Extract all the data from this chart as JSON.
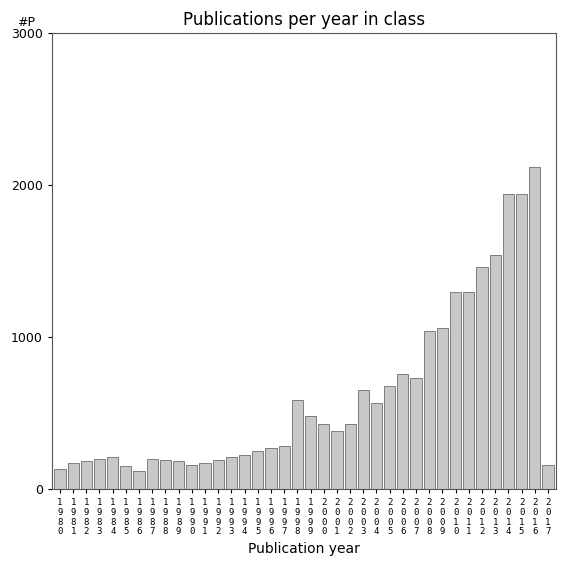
{
  "title": "Publications per year in class",
  "xlabel": "Publication year",
  "ylabel": "#P",
  "bar_years": [
    1980,
    1981,
    1982,
    1983,
    1984,
    1985,
    1986,
    1987,
    1988,
    1989,
    1990,
    1991,
    1992,
    1993,
    1994,
    1995,
    1996,
    1997,
    1998,
    1999,
    2000,
    2001,
    2002,
    2003,
    2004,
    2005,
    2006,
    2007,
    2008,
    2009,
    2010,
    2011,
    2012,
    2013,
    2014,
    2015,
    2016,
    2017
  ],
  "bar_heights": [
    130,
    175,
    185,
    200,
    210,
    155,
    120,
    200,
    195,
    185,
    160,
    175,
    195,
    210,
    225,
    250,
    270,
    285,
    590,
    480,
    430,
    380,
    430,
    650,
    570,
    680,
    760,
    730,
    1040,
    1060,
    1300,
    1300,
    1460,
    1540,
    1940,
    1945,
    2120,
    160
  ],
  "bar_color": "#c8c8c8",
  "bar_edgecolor": "#555555",
  "ylim": [
    0,
    3000
  ],
  "yticks": [
    0,
    1000,
    2000,
    3000
  ],
  "background_color": "#ffffff",
  "title_fontsize": 12,
  "tick_fontsize": 9,
  "xlabel_fontsize": 10,
  "xtick_fontsize": 6.5
}
